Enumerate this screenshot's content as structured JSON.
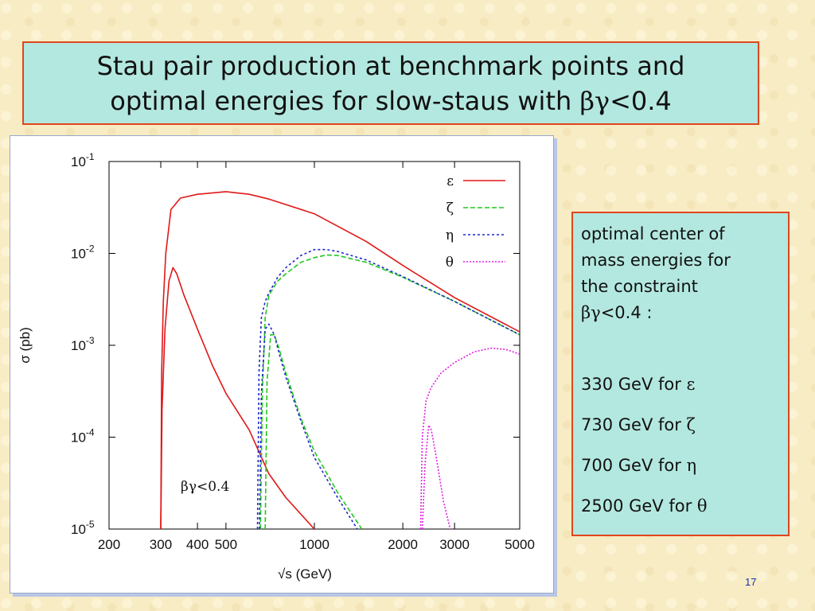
{
  "slide": {
    "title_line1": "Stau pair production at benchmark points and",
    "title_line2_text": "optimal energies for slow-staus with ",
    "title_line2_greek": "βγ",
    "title_line2_end": "<0.4",
    "page_number": "17"
  },
  "info_box": {
    "header_lines": [
      "optimal center of",
      "mass energies for",
      "the constraint"
    ],
    "constraint_greek": "βγ",
    "constraint_text": "<0.4 :",
    "items": [
      {
        "text": "330 GeV for ",
        "greek": "ε"
      },
      {
        "text": "730 GeV for ",
        "greek": "ζ"
      },
      {
        "text": "700 GeV for ",
        "greek": "η"
      },
      {
        "text": "2500 GeV for ",
        "greek": "θ"
      }
    ]
  },
  "chart_data": {
    "type": "line",
    "xlabel": "√s (GeV)",
    "ylabel": "σ (pb)",
    "x_scale": "log",
    "y_scale": "log",
    "xlim": [
      200,
      5000
    ],
    "ylim": [
      1e-05,
      0.1
    ],
    "x_ticks": [
      200,
      300,
      400,
      500,
      1000,
      2000,
      3000,
      5000
    ],
    "x_tick_labels": [
      "200",
      "300",
      "400",
      "500",
      "1000",
      "2000",
      "3000",
      "5000"
    ],
    "y_ticks": [
      1e-05,
      0.0001,
      0.001,
      0.01,
      0.1
    ],
    "y_tick_labels": [
      "10-5",
      "10-4",
      "10-3",
      "10-2",
      "10-1"
    ],
    "annotation": "βγ<0.4",
    "grid": false,
    "legend_position": "top-right",
    "series": [
      {
        "name": "ε",
        "color": "#e01818",
        "dash": "",
        "points": [
          [
            300,
            1e-05
          ],
          [
            302,
            0.0005
          ],
          [
            306,
            0.003
          ],
          [
            312,
            0.01
          ],
          [
            325,
            0.03
          ],
          [
            350,
            0.04
          ],
          [
            400,
            0.044
          ],
          [
            500,
            0.047
          ],
          [
            600,
            0.044
          ],
          [
            700,
            0.039
          ],
          [
            1000,
            0.027
          ],
          [
            1500,
            0.0135
          ],
          [
            2000,
            0.0074
          ],
          [
            3000,
            0.0033
          ],
          [
            5000,
            0.0014
          ]
        ]
      },
      {
        "name": "ε",
        "color": "#e01818",
        "dash": "",
        "points": [
          [
            300,
            1e-05
          ],
          [
            303,
            0.0002
          ],
          [
            310,
            0.0015
          ],
          [
            320,
            0.005
          ],
          [
            330,
            0.007
          ],
          [
            340,
            0.006
          ],
          [
            360,
            0.0035
          ],
          [
            400,
            0.0015
          ],
          [
            450,
            0.0006
          ],
          [
            500,
            0.0003
          ],
          [
            600,
            0.00012
          ],
          [
            700,
            4e-05
          ],
          [
            800,
            2.2e-05
          ],
          [
            1000,
            1e-05
          ]
        ]
      },
      {
        "name": "ζ",
        "color": "#22c81e",
        "dash": "6,3",
        "points": [
          [
            655,
            1e-05
          ],
          [
            665,
            0.0003
          ],
          [
            680,
            0.002
          ],
          [
            700,
            0.0035
          ],
          [
            750,
            0.005
          ],
          [
            800,
            0.006
          ],
          [
            900,
            0.008
          ],
          [
            1000,
            0.009
          ],
          [
            1100,
            0.0096
          ],
          [
            1200,
            0.0095
          ],
          [
            1500,
            0.008
          ],
          [
            2000,
            0.0055
          ],
          [
            3000,
            0.003
          ],
          [
            5000,
            0.0013
          ]
        ]
      },
      {
        "name": "ζ",
        "color": "#22c81e",
        "dash": "6,3",
        "points": [
          [
            680,
            1e-05
          ],
          [
            690,
            0.0004
          ],
          [
            710,
            0.0013
          ],
          [
            730,
            0.0013
          ],
          [
            760,
            0.0009
          ],
          [
            800,
            0.0005
          ],
          [
            900,
            0.00016
          ],
          [
            1000,
            7e-05
          ],
          [
            1200,
            2.5e-05
          ],
          [
            1450,
            1e-05
          ]
        ]
      },
      {
        "name": "η",
        "color": "#1e28c8",
        "dash": "3,3",
        "points": [
          [
            640,
            1e-05
          ],
          [
            648,
            0.0005
          ],
          [
            660,
            0.002
          ],
          [
            680,
            0.003
          ],
          [
            700,
            0.0037
          ],
          [
            750,
            0.0055
          ],
          [
            800,
            0.007
          ],
          [
            900,
            0.0095
          ],
          [
            1000,
            0.011
          ],
          [
            1100,
            0.011
          ],
          [
            1200,
            0.0105
          ],
          [
            1500,
            0.0085
          ],
          [
            2000,
            0.0056
          ],
          [
            3000,
            0.003
          ],
          [
            5000,
            0.0013
          ]
        ]
      },
      {
        "name": "η",
        "color": "#1e28c8",
        "dash": "3,3",
        "points": [
          [
            650,
            1e-05
          ],
          [
            660,
            0.0003
          ],
          [
            680,
            0.0015
          ],
          [
            700,
            0.0017
          ],
          [
            730,
            0.0013
          ],
          [
            760,
            0.0008
          ],
          [
            800,
            0.00045
          ],
          [
            900,
            0.00015
          ],
          [
            1000,
            6e-05
          ],
          [
            1200,
            2.2e-05
          ],
          [
            1400,
            1e-05
          ]
        ]
      },
      {
        "name": "θ",
        "color": "#e21ee2",
        "dash": "2,2",
        "points": [
          [
            2300,
            1e-05
          ],
          [
            2330,
            0.0001
          ],
          [
            2400,
            0.00025
          ],
          [
            2500,
            0.00035
          ],
          [
            2700,
            0.0005
          ],
          [
            3000,
            0.00065
          ],
          [
            3500,
            0.00085
          ],
          [
            4000,
            0.00093
          ],
          [
            4500,
            0.0009
          ],
          [
            5000,
            0.0008
          ]
        ]
      },
      {
        "name": "θ",
        "color": "#e21ee2",
        "dash": "2,2",
        "points": [
          [
            2330,
            1e-05
          ],
          [
            2380,
            5e-05
          ],
          [
            2450,
            0.000135
          ],
          [
            2500,
            0.00012
          ],
          [
            2600,
            6e-05
          ],
          [
            2750,
            2e-05
          ],
          [
            2900,
            1e-05
          ]
        ]
      }
    ],
    "legend": [
      {
        "name": "ε",
        "color": "#e01818",
        "dash": ""
      },
      {
        "name": "ζ",
        "color": "#22c81e",
        "dash": "6,3"
      },
      {
        "name": "η",
        "color": "#1e28c8",
        "dash": "3,3"
      },
      {
        "name": "θ",
        "color": "#e21ee2",
        "dash": "2,2"
      }
    ]
  }
}
